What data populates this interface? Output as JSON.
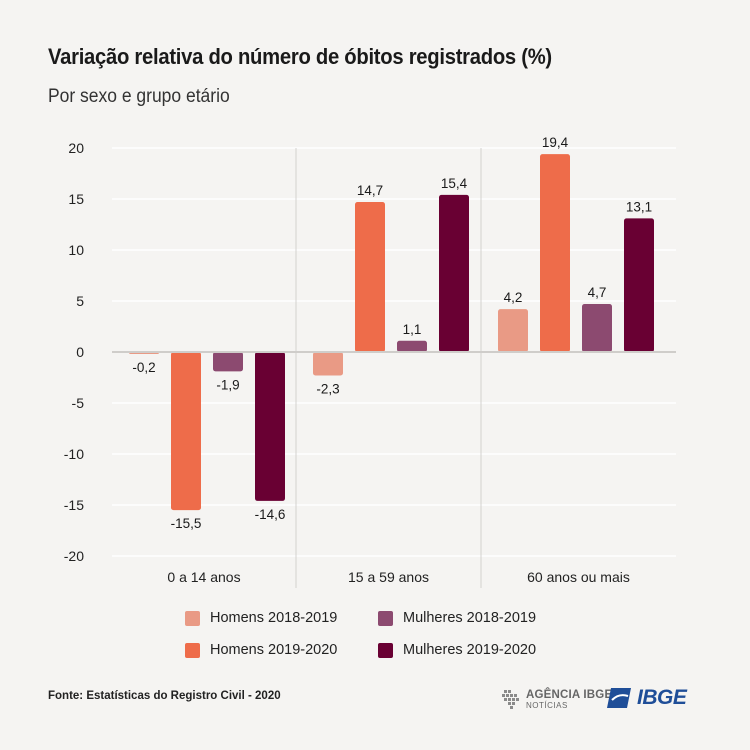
{
  "header": {
    "title": "Variação relativa do número de óbitos registrados (%)",
    "subtitle": "Por sexo e grupo etário"
  },
  "colors": {
    "homens_2018_2019": "#e99a85",
    "homens_2019_2020": "#ee6c4a",
    "mulheres_2018_2019": "#8c4a70",
    "mulheres_2019_2020": "#690033",
    "background": "#f5f4f2",
    "gridline": "#ffffff",
    "divider": "#d4d2cf",
    "zero_line": "#cfcdca"
  },
  "chart_data": {
    "type": "bar",
    "title": "Variação relativa do número de óbitos registrados (%)",
    "subtitle": "Por sexo e grupo etário",
    "categories": [
      "0 a 14 anos",
      "15 a 59 anos",
      "60 anos ou mais"
    ],
    "series": [
      {
        "name": "Homens 2018-2019",
        "values": [
          -0.2,
          -2.3,
          4.2
        ],
        "labels": [
          "-0,2",
          "-2,3",
          "4,2"
        ],
        "color": "#e99a85"
      },
      {
        "name": "Homens 2019-2020",
        "values": [
          -15.5,
          14.7,
          19.4
        ],
        "labels": [
          "-15,5",
          "14,7",
          "19,4"
        ],
        "color": "#ee6c4a"
      },
      {
        "name": "Mulheres 2018-2019",
        "values": [
          -1.9,
          1.1,
          4.7
        ],
        "labels": [
          "-1,9",
          "1,1",
          "4,7"
        ],
        "color": "#8c4a70"
      },
      {
        "name": "Mulheres 2019-2020",
        "values": [
          -14.6,
          15.4,
          13.1
        ],
        "labels": [
          "-14,6",
          "15,4",
          "13,1"
        ],
        "color": "#690033"
      }
    ],
    "yticks": [
      20,
      15,
      10,
      5,
      0,
      -5,
      -10,
      -15,
      -20
    ],
    "ytick_labels": [
      "20",
      "15",
      "10",
      "5",
      "0",
      "-5",
      "-10",
      "-15",
      "-20"
    ],
    "ylim": [
      -20,
      20
    ],
    "grid": true,
    "legend_position": "bottom"
  },
  "legend": {
    "items": [
      {
        "label": "Homens 2018-2019",
        "color": "#e99a85"
      },
      {
        "label": "Mulheres 2018-2019",
        "color": "#8c4a70"
      },
      {
        "label": "Homens 2019-2020",
        "color": "#ee6c4a"
      },
      {
        "label": "Mulheres 2019-2020",
        "color": "#690033"
      }
    ]
  },
  "footer": {
    "source": "Fonte: Estatísticas do Registro Civil - 2020",
    "agencia_line1": "AGÊNCIA IBGE",
    "agencia_line2": "NOTÍCIAS",
    "ibge_logo": "IBGE"
  }
}
